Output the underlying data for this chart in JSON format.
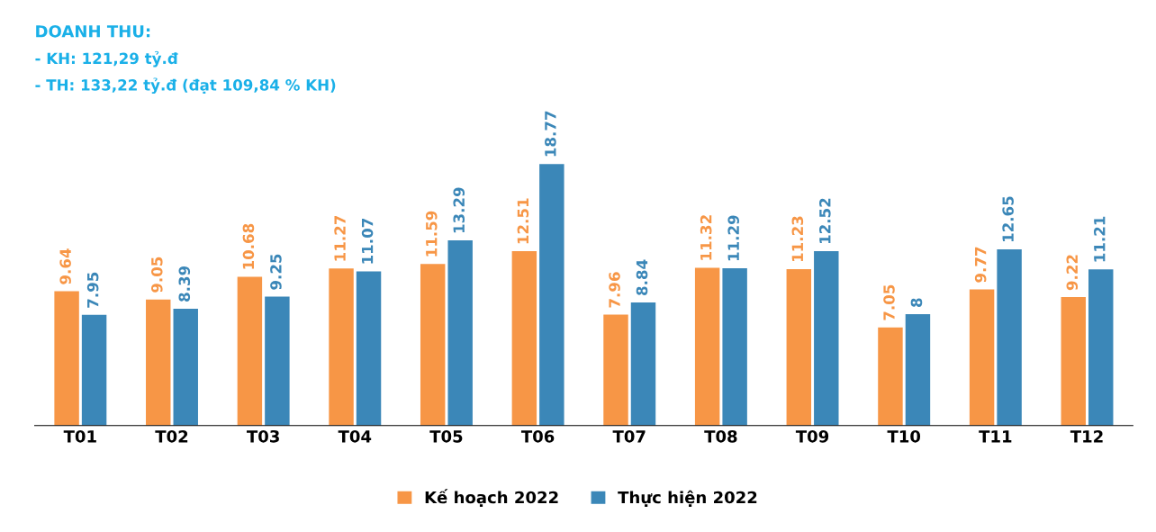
{
  "chart_data": {
    "type": "bar",
    "title": "DOANH THU:",
    "annotations": [
      "- KH: 121,29 tỷ.đ",
      "- TH: 133,22 tỷ.đ (đạt 109,84 % KH)"
    ],
    "categories": [
      "T01",
      "T02",
      "T03",
      "T04",
      "T05",
      "T06",
      "T07",
      "T08",
      "T09",
      "T10",
      "T11",
      "T12"
    ],
    "series": [
      {
        "name": "Kế hoạch 2022",
        "color": "#f79646",
        "values": [
          9.64,
          9.05,
          10.68,
          11.27,
          11.59,
          12.51,
          7.96,
          11.32,
          11.23,
          7.05,
          9.77,
          9.22
        ]
      },
      {
        "name": "Thực hiện 2022",
        "color": "#3b87b8",
        "values": [
          7.95,
          8.39,
          9.25,
          11.07,
          13.29,
          18.77,
          8.84,
          11.29,
          12.52,
          8,
          12.65,
          11.21
        ]
      }
    ],
    "data_labels": true,
    "legend": "bottom",
    "tick_labels": "x",
    "grid": false
  }
}
